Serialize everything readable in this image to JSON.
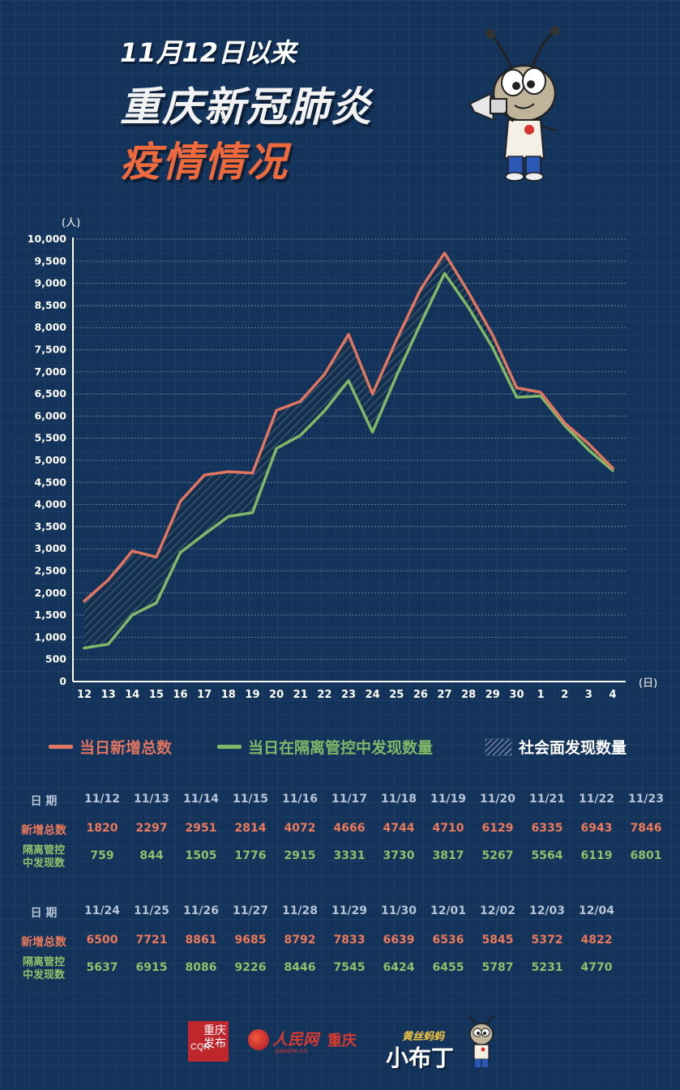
{
  "header": {
    "line1": "11月12日以来",
    "line2": "重庆新冠肺炎",
    "line3": "疫情情况"
  },
  "chart_data": {
    "type": "line",
    "ylabel": "(人)",
    "xlabel": "(日)",
    "ylim": [
      0,
      10000
    ],
    "y_ticks": [
      0,
      500,
      1000,
      1500,
      2000,
      2500,
      3000,
      3500,
      4000,
      4500,
      5000,
      5500,
      6000,
      6500,
      7000,
      7500,
      8000,
      8500,
      9000,
      9500,
      10000
    ],
    "y_tick_labels": [
      "0",
      "500",
      "1,000",
      "1,500",
      "2,000",
      "2,500",
      "3,000",
      "3,500",
      "4,000",
      "4,500",
      "5,000",
      "5,500",
      "6,000",
      "6,500",
      "7,000",
      "7,500",
      "8,000",
      "8,500",
      "9,000",
      "9,500",
      "10,000"
    ],
    "categories": [
      "12",
      "13",
      "14",
      "15",
      "16",
      "17",
      "18",
      "19",
      "20",
      "21",
      "22",
      "23",
      "24",
      "25",
      "26",
      "27",
      "28",
      "29",
      "30",
      "1",
      "2",
      "3",
      "4"
    ],
    "grid": "horizontal dotted",
    "legend_position": "bottom",
    "series": [
      {
        "name": "当日新增总数",
        "color": "#e07560",
        "values": [
          1820,
          2297,
          2951,
          2814,
          4072,
          4666,
          4744,
          4710,
          6129,
          6335,
          6943,
          7846,
          6500,
          7721,
          8861,
          9685,
          8792,
          7833,
          6639,
          6536,
          5845,
          5372,
          4822
        ]
      },
      {
        "name": "当日在隔离管控中发现数量",
        "color": "#7fb866",
        "values": [
          759,
          844,
          1505,
          1776,
          2915,
          3331,
          3730,
          3817,
          5267,
          5564,
          6119,
          6801,
          5637,
          6915,
          8086,
          9226,
          8446,
          7545,
          6424,
          6455,
          5787,
          5231,
          4770
        ]
      }
    ],
    "area_between_label": "社会面发现数量"
  },
  "table": {
    "label_date": "日 期",
    "label_total": "新增总数",
    "label_iso_1": "隔离管控",
    "label_iso_2": "中发现数",
    "block1": {
      "dates": [
        "11/12",
        "11/13",
        "11/14",
        "11/15",
        "11/16",
        "11/17",
        "11/18",
        "11/19",
        "11/20",
        "11/21",
        "11/22",
        "11/23"
      ],
      "totals": [
        "1820",
        "2297",
        "2951",
        "2814",
        "4072",
        "4666",
        "4744",
        "4710",
        "6129",
        "6335",
        "6943",
        "7846"
      ],
      "isolated": [
        "759",
        "844",
        "1505",
        "1776",
        "2915",
        "3331",
        "3730",
        "3817",
        "5267",
        "5564",
        "6119",
        "6801"
      ]
    },
    "block2": {
      "dates": [
        "11/24",
        "11/25",
        "11/26",
        "11/27",
        "11/28",
        "11/29",
        "11/30",
        "12/01",
        "12/02",
        "12/03",
        "12/04"
      ],
      "totals": [
        "6500",
        "7721",
        "8861",
        "9685",
        "8792",
        "7833",
        "6639",
        "6536",
        "5845",
        "5372",
        "4822"
      ],
      "isolated": [
        "5637",
        "6915",
        "8086",
        "9226",
        "8446",
        "7545",
        "6424",
        "6455",
        "5787",
        "5231",
        "4770"
      ]
    }
  },
  "footer": {
    "cq_logo_text": "重庆发布",
    "cq_logo_small": "CQR",
    "rm_logo_name": "人民网",
    "rm_logo_url": "people.cn",
    "rm_logo_city": "重庆",
    "xbd_small": "黄丝蚂蚂",
    "xbd_big": "小布丁"
  },
  "colors": {
    "background": "#13335a",
    "total_line": "#e07560",
    "isolated_line": "#7fb866",
    "title_accent": "#ee6a3c"
  }
}
